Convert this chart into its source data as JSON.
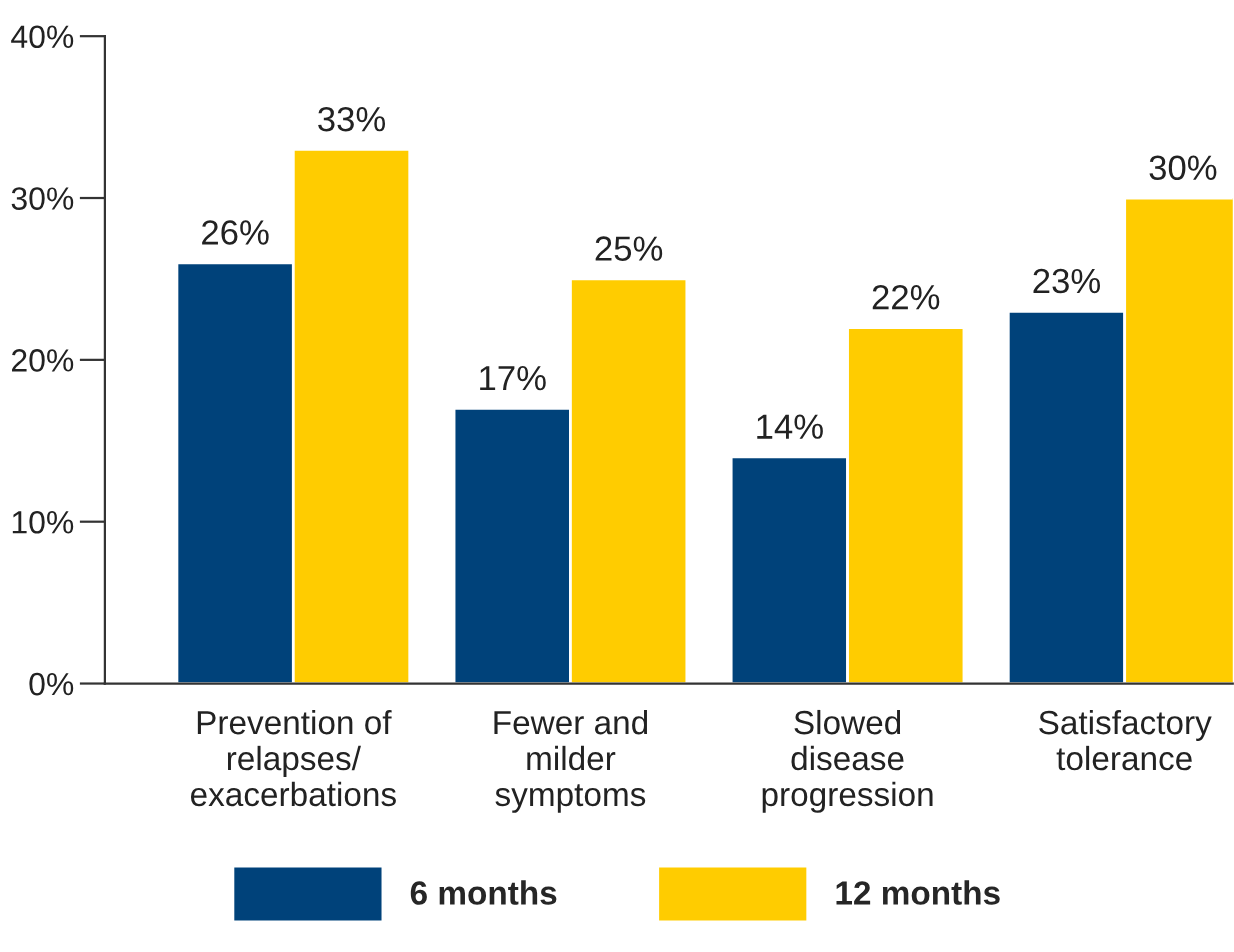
{
  "chart_data": {
    "type": "bar",
    "categories": [
      "Prevention of\nrelapses/\nexacerbations",
      "Fewer and\nmilder\nsymptoms",
      "Slowed\ndisease\nprogression",
      "Satisfactory\ntolerance"
    ],
    "series": [
      {
        "name": "6 months",
        "color": "#00427a",
        "values": [
          26,
          17,
          14,
          23
        ],
        "value_labels": [
          "26%",
          "17%",
          "14%",
          "23%"
        ]
      },
      {
        "name": "12 months",
        "color": "#ffcc00",
        "values": [
          33,
          25,
          22,
          30
        ],
        "value_labels": [
          "33%",
          "25%",
          "22%",
          "30%"
        ]
      }
    ],
    "ylim": [
      0,
      40
    ],
    "yticks": [
      {
        "value": 0,
        "label": "0%"
      },
      {
        "value": 10,
        "label": "10%"
      },
      {
        "value": 20,
        "label": "20%"
      },
      {
        "value": 30,
        "label": "30%"
      },
      {
        "value": 40,
        "label": "40%"
      }
    ],
    "grid": false,
    "legend": "bottom"
  }
}
